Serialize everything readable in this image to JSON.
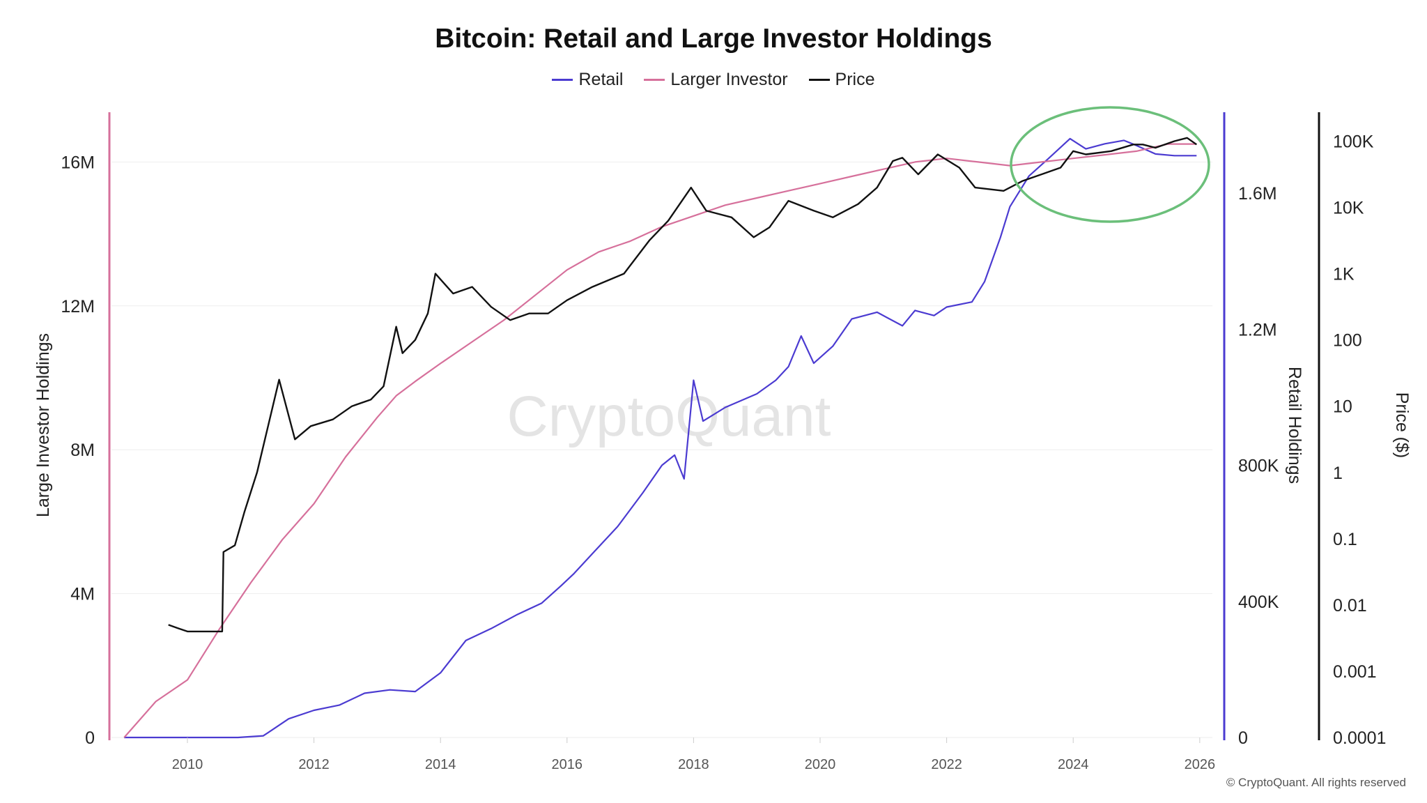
{
  "colors": {
    "retail": "#4b3bd1",
    "large": "#d6709b",
    "price": "#111111",
    "highlight": "#6bbf7a",
    "grid": "#eeeeee"
  },
  "legend": [
    {
      "key": "retail",
      "label": "Retail"
    },
    {
      "key": "large",
      "label": "Larger Investor"
    },
    {
      "key": "price",
      "label": "Price"
    }
  ],
  "chart_data": {
    "type": "line",
    "title": "Bitcoin: Retail and Large Investor Holdings",
    "watermark": "CryptoQuant",
    "copyright": "© CryptoQuant. All rights reserved",
    "xlabel": "",
    "xlim": [
      2008.8,
      2026.2
    ],
    "x_ticks": [
      {
        "value": 2010,
        "label": "2010"
      },
      {
        "value": 2012,
        "label": "2012"
      },
      {
        "value": 2014,
        "label": "2014"
      },
      {
        "value": 2016,
        "label": "2016"
      },
      {
        "value": 2018,
        "label": "2018"
      },
      {
        "value": 2020,
        "label": "2020"
      },
      {
        "value": 2022,
        "label": "2022"
      },
      {
        "value": 2024,
        "label": "2024"
      },
      {
        "value": 2026,
        "label": "2026"
      }
    ],
    "axes": {
      "large": {
        "label": "Large Investor Holdings",
        "ylim": [
          0,
          17500000
        ],
        "ticks": [
          {
            "value": 0,
            "label": "0"
          },
          {
            "value": 4000000,
            "label": "4M"
          },
          {
            "value": 8000000,
            "label": "8M"
          },
          {
            "value": 12000000,
            "label": "12M"
          },
          {
            "value": 16000000,
            "label": "16M"
          }
        ]
      },
      "retail": {
        "label": "Retail Holdings",
        "ylim": [
          0,
          1850000
        ],
        "ticks": [
          {
            "value": 0,
            "label": "0"
          },
          {
            "value": 400000,
            "label": "400K"
          },
          {
            "value": 800000,
            "label": "800K"
          },
          {
            "value": 1200000,
            "label": "1.2M"
          },
          {
            "value": 1600000,
            "label": "1.6M"
          }
        ]
      },
      "price": {
        "label": "Price ($)",
        "scale": "log10",
        "ylim": [
          -4,
          5.5
        ],
        "ticks": [
          {
            "value": -4,
            "label": "0.0001"
          },
          {
            "value": -3,
            "label": "0.001"
          },
          {
            "value": -2,
            "label": "0.01"
          },
          {
            "value": -1,
            "label": "0.1"
          },
          {
            "value": 0,
            "label": "1"
          },
          {
            "value": 1,
            "label": "10"
          },
          {
            "value": 2,
            "label": "100"
          },
          {
            "value": 3,
            "label": "1K"
          },
          {
            "value": 4,
            "label": "10K"
          },
          {
            "value": 5,
            "label": "100K"
          }
        ]
      }
    },
    "series": [
      {
        "name": "Retail",
        "key": "retail",
        "axis": "retail",
        "x": [
          2009.0,
          2010.0,
          2010.8,
          2011.2,
          2011.4,
          2011.6,
          2012.0,
          2012.4,
          2012.8,
          2013.2,
          2013.6,
          2014.0,
          2014.4,
          2014.8,
          2015.2,
          2015.6,
          2015.9,
          2016.1,
          2016.4,
          2016.8,
          2017.2,
          2017.5,
          2017.7,
          2017.85,
          2018.0,
          2018.15,
          2018.5,
          2019.0,
          2019.3,
          2019.5,
          2019.7,
          2019.9,
          2020.2,
          2020.5,
          2020.9,
          2021.3,
          2021.5,
          2021.8,
          2022.0,
          2022.4,
          2022.6,
          2022.85,
          2023.0,
          2023.3,
          2023.6,
          2023.95,
          2024.2,
          2024.5,
          2024.8,
          2025.0,
          2025.3,
          2025.6,
          2025.95
        ],
        "values": [
          0,
          0,
          0,
          5000,
          30000,
          55000,
          80000,
          95000,
          130000,
          140000,
          135000,
          190000,
          285000,
          320000,
          360000,
          395000,
          445000,
          480000,
          540000,
          620000,
          720000,
          800000,
          830000,
          760000,
          1050000,
          930000,
          970000,
          1010000,
          1050000,
          1090000,
          1180000,
          1100000,
          1150000,
          1230000,
          1250000,
          1210000,
          1255000,
          1240000,
          1265000,
          1280000,
          1340000,
          1470000,
          1560000,
          1650000,
          1700000,
          1760000,
          1730000,
          1745000,
          1755000,
          1740000,
          1715000,
          1710000,
          1710000
        ]
      },
      {
        "name": "Larger Investor",
        "key": "large",
        "axis": "large",
        "x": [
          2009.0,
          2009.5,
          2010.0,
          2010.5,
          2011.0,
          2011.5,
          2012.0,
          2012.5,
          2013.0,
          2013.3,
          2013.6,
          2014.0,
          2014.5,
          2015.0,
          2015.5,
          2016.0,
          2016.5,
          2017.0,
          2017.5,
          2018.0,
          2018.5,
          2019.0,
          2019.5,
          2020.0,
          2020.5,
          2021.0,
          2021.5,
          2022.0,
          2022.5,
          2023.0,
          2023.5,
          2024.0,
          2024.5,
          2025.0,
          2025.5,
          2025.95
        ],
        "values": [
          0,
          1000000,
          1600000,
          3000000,
          4300000,
          5500000,
          6500000,
          7800000,
          8900000,
          9500000,
          9900000,
          10400000,
          11000000,
          11600000,
          12300000,
          13000000,
          13500000,
          13800000,
          14200000,
          14500000,
          14800000,
          15000000,
          15200000,
          15400000,
          15600000,
          15800000,
          16000000,
          16100000,
          16000000,
          15900000,
          16000000,
          16100000,
          16200000,
          16300000,
          16500000,
          16500000
        ]
      },
      {
        "name": "Price",
        "key": "price",
        "axis": "price",
        "x": [
          2009.7,
          2009.85,
          2010.0,
          2010.55,
          2010.57,
          2010.75,
          2010.9,
          2011.1,
          2011.45,
          2011.7,
          2011.95,
          2012.3,
          2012.6,
          2012.9,
          2013.1,
          2013.3,
          2013.4,
          2013.6,
          2013.8,
          2013.92,
          2014.2,
          2014.5,
          2014.8,
          2015.1,
          2015.4,
          2015.7,
          2016.0,
          2016.4,
          2016.9,
          2017.3,
          2017.6,
          2017.96,
          2018.2,
          2018.6,
          2018.95,
          2019.2,
          2019.5,
          2019.9,
          2020.2,
          2020.6,
          2020.9,
          2021.15,
          2021.3,
          2021.55,
          2021.86,
          2022.2,
          2022.45,
          2022.9,
          2023.2,
          2023.5,
          2023.8,
          2024.0,
          2024.2,
          2024.6,
          2024.95,
          2025.1,
          2025.3,
          2025.6,
          2025.8,
          2025.95
        ],
        "values": [
          -2.3,
          -2.35,
          -2.4,
          -2.4,
          -1.2,
          -1.1,
          -0.6,
          0.0,
          1.4,
          0.5,
          0.7,
          0.8,
          1.0,
          1.1,
          1.3,
          2.2,
          1.8,
          2.0,
          2.4,
          3.0,
          2.7,
          2.8,
          2.5,
          2.3,
          2.4,
          2.4,
          2.6,
          2.8,
          3.0,
          3.5,
          3.8,
          4.3,
          3.95,
          3.85,
          3.55,
          3.7,
          4.1,
          3.95,
          3.85,
          4.05,
          4.3,
          4.7,
          4.75,
          4.5,
          4.8,
          4.6,
          4.3,
          4.25,
          4.4,
          4.5,
          4.6,
          4.85,
          4.8,
          4.85,
          4.95,
          4.95,
          4.9,
          5.0,
          5.05,
          4.95
        ]
      }
    ]
  }
}
